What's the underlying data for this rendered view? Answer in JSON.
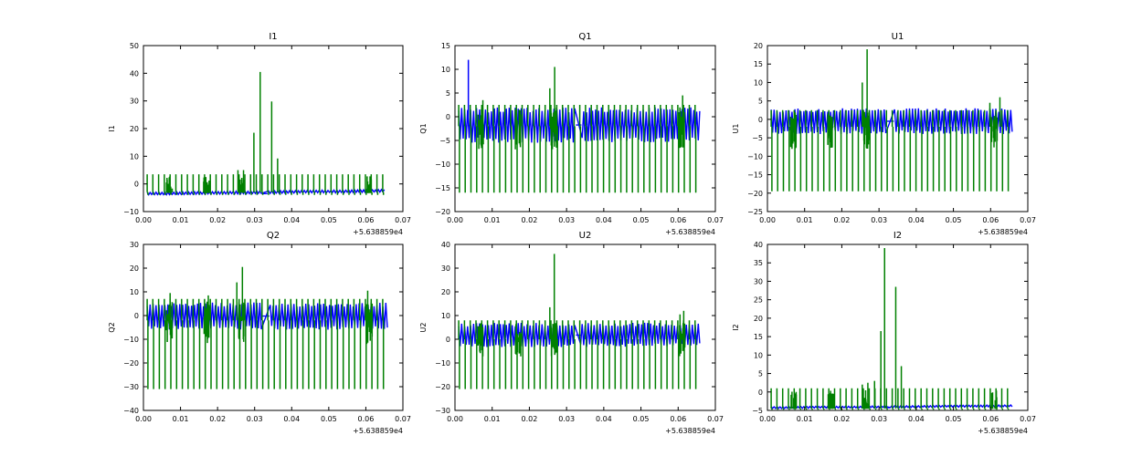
{
  "chart_data": [
    {
      "type": "line",
      "title": "I1",
      "ylabel": "I1",
      "x_offset_label": "+5.638859e4",
      "xlim": [
        0.0,
        0.07
      ],
      "ylim": [
        -10,
        50
      ],
      "xticks": [
        "0.00",
        "0.01",
        "0.02",
        "0.03",
        "0.04",
        "0.05",
        "0.06",
        "0.07"
      ],
      "yticks": [
        "−10",
        "0",
        "10",
        "20",
        "30",
        "40",
        "50"
      ],
      "series": [
        {
          "color": "#0000ff",
          "kind": "band",
          "x_start": 0.001,
          "x_end": 0.065,
          "gap": [
            0.032,
            0.0335
          ],
          "low": -4.0,
          "high": -3.0,
          "low_end": -3.0,
          "high_end": -2.0
        },
        {
          "color": "#008000",
          "kind": "spikes",
          "x_start": 0.001,
          "x_end": 0.065,
          "period": 0.00155,
          "base": -3.0,
          "top": 3.5,
          "bottom": -4.0,
          "peaks": [
            {
              "x": 0.0298,
              "y": 18.5
            },
            {
              "x": 0.0315,
              "y": 40.5
            },
            {
              "x": 0.0346,
              "y": 29.8
            },
            {
              "x": 0.0362,
              "y": 9.2
            },
            {
              "x": 0.0255,
              "y": 5.0
            },
            {
              "x": 0.027,
              "y": 5.0
            }
          ]
        }
      ]
    },
    {
      "type": "line",
      "title": "Q1",
      "ylabel": "Q1",
      "x_offset_label": "+5.638859e4",
      "xlim": [
        0.0,
        0.07
      ],
      "ylim": [
        -20,
        15
      ],
      "xticks": [
        "0.00",
        "0.01",
        "0.02",
        "0.03",
        "0.04",
        "0.05",
        "0.06",
        "0.07"
      ],
      "yticks": [
        "−20",
        "−15",
        "−10",
        "−5",
        "0",
        "5",
        "10",
        "15"
      ],
      "series": [
        {
          "color": "#0000ff",
          "kind": "band",
          "x_start": 0.001,
          "x_end": 0.066,
          "gap": [
            0.0325,
            0.034
          ],
          "low": -5.5,
          "high": 2.0,
          "low_end": -5.5,
          "high_end": 2.0
        },
        {
          "color": "#008000",
          "kind": "spikes",
          "x_start": 0.001,
          "x_end": 0.065,
          "period": 0.00155,
          "base": -2.0,
          "top": 2.5,
          "bottom": -16.0,
          "peaks": [
            {
              "x": 0.0036,
              "y": 12.0,
              "blue": true
            },
            {
              "x": 0.0268,
              "y": 10.5
            },
            {
              "x": 0.0255,
              "y": 6.0
            },
            {
              "x": 0.0612,
              "y": 4.5
            },
            {
              "x": 0.0075,
              "y": 3.5
            }
          ]
        }
      ]
    },
    {
      "type": "line",
      "title": "U1",
      "ylabel": "U1",
      "x_offset_label": "+5.638859e4",
      "xlim": [
        0.0,
        0.07
      ],
      "ylim": [
        -25,
        20
      ],
      "xticks": [
        "0.00",
        "0.01",
        "0.02",
        "0.03",
        "0.04",
        "0.05",
        "0.06",
        "0.07"
      ],
      "yticks": [
        "−25",
        "−20",
        "−15",
        "−10",
        "−5",
        "0",
        "5",
        "10",
        "15",
        "20"
      ],
      "series": [
        {
          "color": "#0000ff",
          "kind": "band",
          "x_start": 0.001,
          "x_end": 0.066,
          "gap": [
            0.032,
            0.034
          ],
          "low": -4.0,
          "high": 3.0,
          "low_end": -4.0,
          "high_end": 3.0
        },
        {
          "color": "#008000",
          "kind": "spikes",
          "x_start": 0.001,
          "x_end": 0.065,
          "period": 0.00155,
          "base": -2.0,
          "top": 2.5,
          "bottom": -19.5,
          "peaks": [
            {
              "x": 0.0268,
              "y": 19.0
            },
            {
              "x": 0.0255,
              "y": 10.0
            },
            {
              "x": 0.0625,
              "y": 6.0
            },
            {
              "x": 0.0598,
              "y": 4.5
            }
          ]
        }
      ]
    },
    {
      "type": "line",
      "title": "Q2",
      "ylabel": "Q2",
      "x_offset_label": "+5.638859e4",
      "xlim": [
        0.0,
        0.07
      ],
      "ylim": [
        -40,
        30
      ],
      "xticks": [
        "0.00",
        "0.01",
        "0.02",
        "0.03",
        "0.04",
        "0.05",
        "0.06",
        "0.07"
      ],
      "yticks": [
        "−40",
        "−30",
        "−20",
        "−10",
        "0",
        "10",
        "20",
        "30"
      ],
      "series": [
        {
          "color": "#0000ff",
          "kind": "band",
          "x_start": 0.001,
          "x_end": 0.066,
          "gap": [
            0.032,
            0.034
          ],
          "low": -6.0,
          "high": 5.5,
          "low_end": -6.0,
          "high_end": 5.5
        },
        {
          "color": "#008000",
          "kind": "spikes",
          "x_start": 0.001,
          "x_end": 0.065,
          "period": 0.00155,
          "base": -2.0,
          "top": 7.0,
          "bottom": -31.0,
          "peaks": [
            {
              "x": 0.0267,
              "y": 20.5
            },
            {
              "x": 0.0252,
              "y": 14.0
            },
            {
              "x": 0.0605,
              "y": 10.5
            },
            {
              "x": 0.0072,
              "y": 9.5
            },
            {
              "x": 0.0175,
              "y": 8.5
            }
          ]
        }
      ]
    },
    {
      "type": "line",
      "title": "U2",
      "ylabel": "U2",
      "x_offset_label": "+5.638859e4",
      "xlim": [
        0.0,
        0.07
      ],
      "ylim": [
        -30,
        40
      ],
      "xticks": [
        "0.00",
        "0.01",
        "0.02",
        "0.03",
        "0.04",
        "0.05",
        "0.06",
        "0.07"
      ],
      "yticks": [
        "−30",
        "−20",
        "−10",
        "0",
        "10",
        "20",
        "30",
        "40"
      ],
      "series": [
        {
          "color": "#0000ff",
          "kind": "band",
          "x_start": 0.001,
          "x_end": 0.066,
          "gap": [
            0.0325,
            0.0338
          ],
          "low": -3.5,
          "high": 7.0,
          "low_end": -3.0,
          "high_end": 7.0
        },
        {
          "color": "#008000",
          "kind": "spikes",
          "x_start": 0.001,
          "x_end": 0.065,
          "period": 0.00155,
          "base": 0.0,
          "top": 8.0,
          "bottom": -21.0,
          "peaks": [
            {
              "x": 0.0267,
              "y": 36.0
            },
            {
              "x": 0.0255,
              "y": 13.5
            },
            {
              "x": 0.0615,
              "y": 12.0
            },
            {
              "x": 0.0605,
              "y": 10.5
            }
          ]
        }
      ]
    },
    {
      "type": "line",
      "title": "I2",
      "ylabel": "I2",
      "x_offset_label": "+5.638859e4",
      "xlim": [
        0.0,
        0.07
      ],
      "ylim": [
        -5,
        40
      ],
      "xticks": [
        "0.00",
        "0.01",
        "0.02",
        "0.03",
        "0.04",
        "0.05",
        "0.06",
        "0.07"
      ],
      "yticks": [
        "−5",
        "0",
        "5",
        "10",
        "15",
        "20",
        "25",
        "30",
        "35",
        "40"
      ],
      "series": [
        {
          "color": "#0000ff",
          "kind": "band",
          "x_start": 0.001,
          "x_end": 0.066,
          "gap": [
            0.0315,
            0.033
          ],
          "low": -4.5,
          "high": -4.0,
          "low_end": -4.0,
          "high_end": -3.5
        },
        {
          "color": "#008000",
          "kind": "spikes",
          "x_start": 0.001,
          "x_end": 0.065,
          "period": 0.00155,
          "base": -4.5,
          "top": 1.0,
          "bottom": -4.8,
          "peaks": [
            {
              "x": 0.0305,
              "y": 16.5
            },
            {
              "x": 0.0315,
              "y": 39.0
            },
            {
              "x": 0.0345,
              "y": 28.5
            },
            {
              "x": 0.036,
              "y": 7.0
            },
            {
              "x": 0.0288,
              "y": 3.0
            },
            {
              "x": 0.027,
              "y": 2.5
            },
            {
              "x": 0.0255,
              "y": 2.0
            }
          ]
        }
      ]
    }
  ]
}
